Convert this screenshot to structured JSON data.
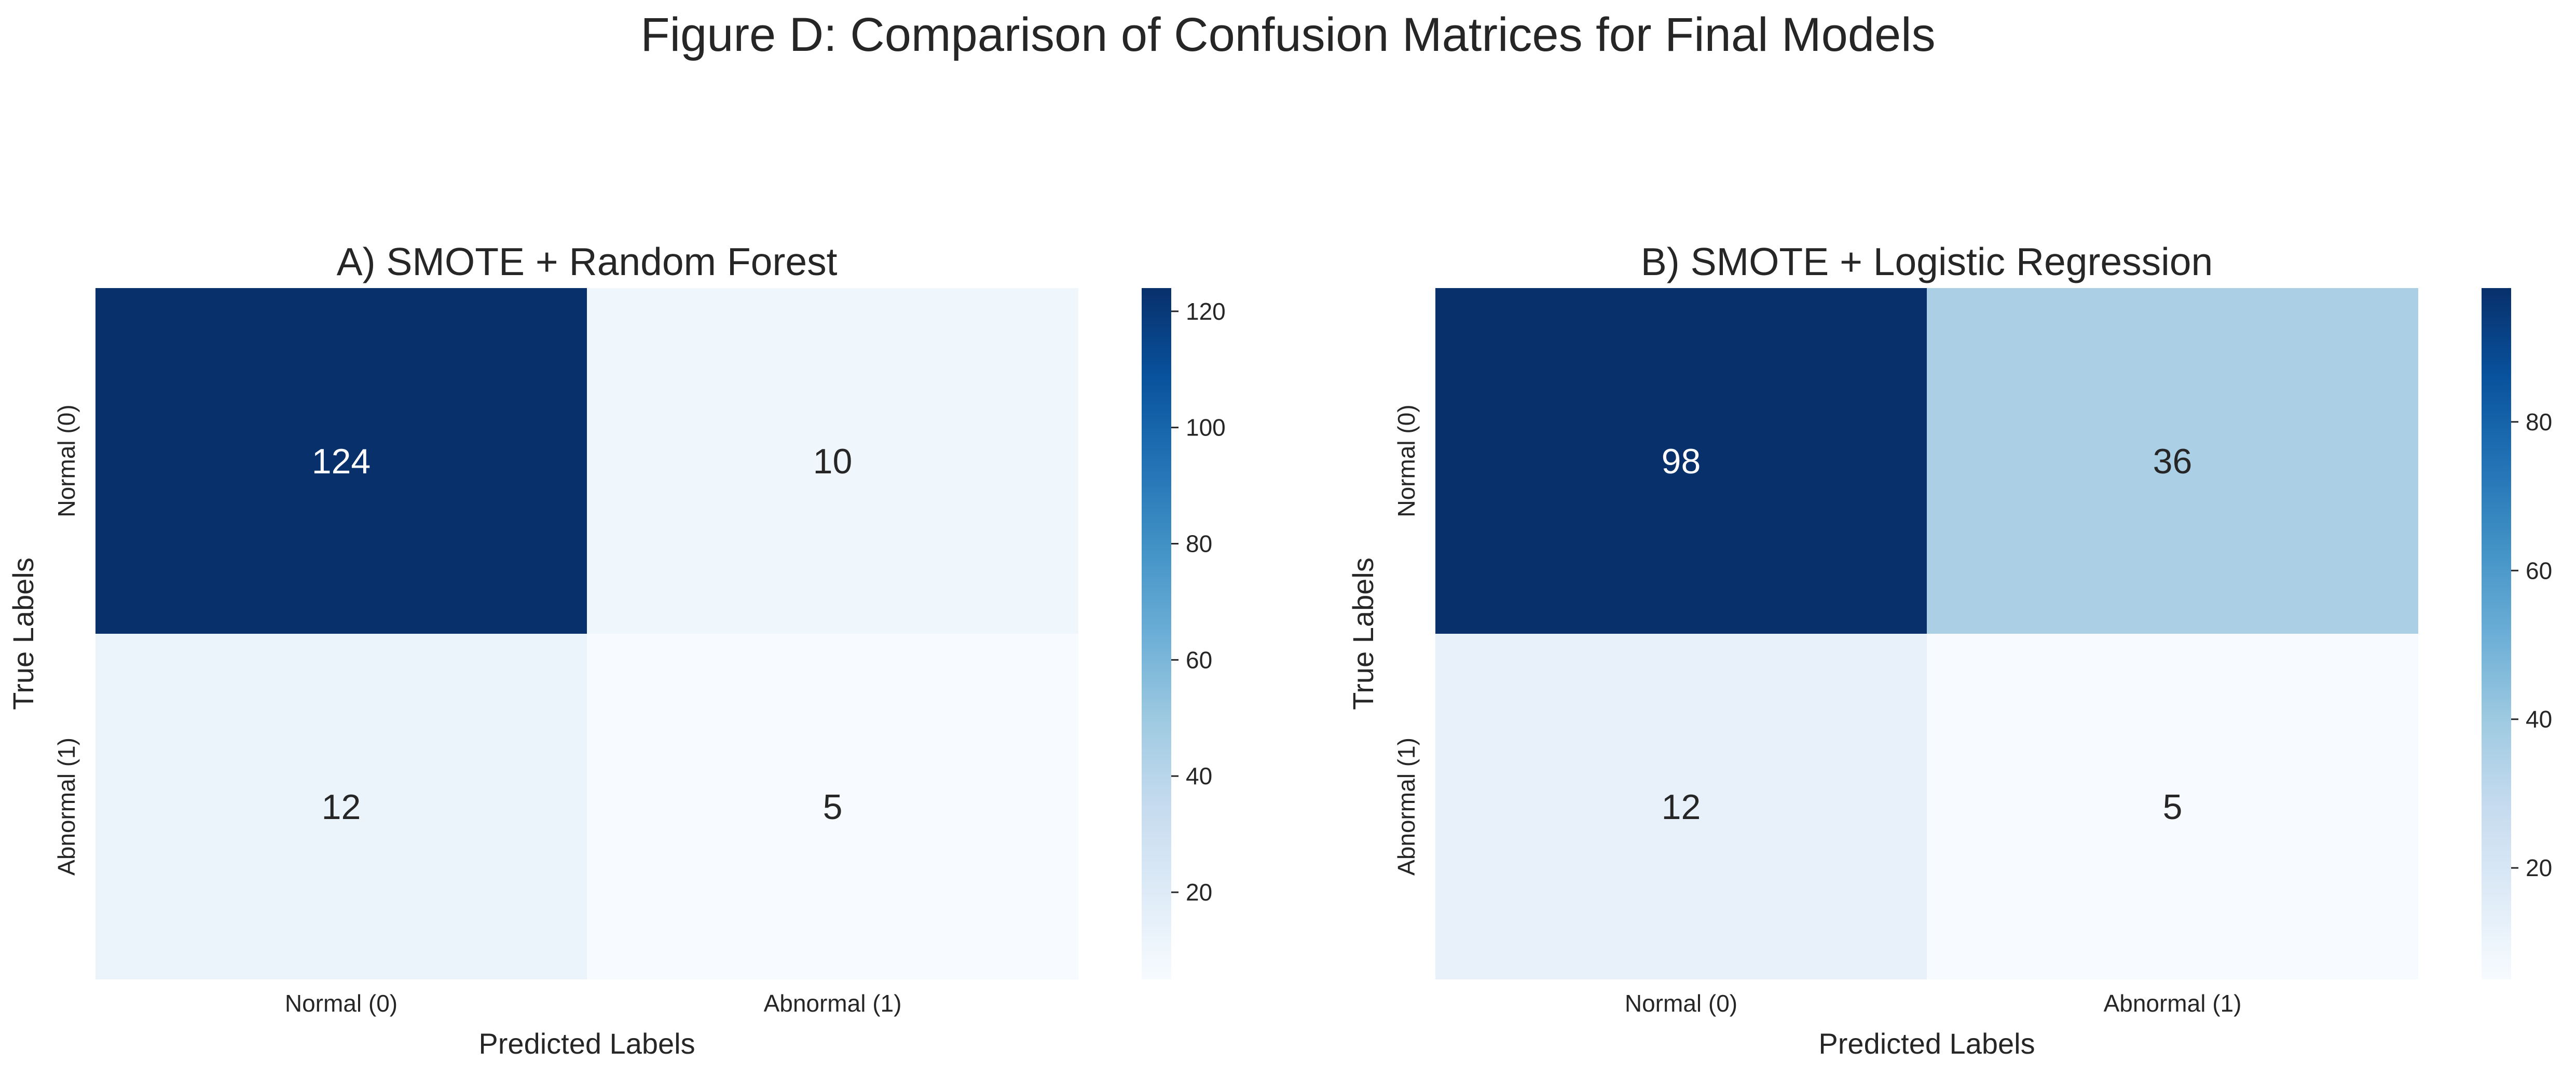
{
  "figure": {
    "title": "Figure D: Comparison of Confusion Matrices for Final Models"
  },
  "chart_data": [
    {
      "type": "heatmap",
      "title": "A) SMOTE + Random Forest",
      "xlabel": "Predicted Labels",
      "ylabel": "True Labels",
      "x_categories": [
        "Normal (0)",
        "Abnormal (1)"
      ],
      "y_categories": [
        "Normal (0)",
        "Abnormal (1)"
      ],
      "values": [
        [
          124,
          10
        ],
        [
          12,
          5
        ]
      ],
      "colormap": "Blues",
      "color_range": [
        5,
        124
      ],
      "colorbar": {
        "ticks": [
          20,
          40,
          60,
          80,
          100,
          120
        ]
      }
    },
    {
      "type": "heatmap",
      "title": "B) SMOTE + Logistic Regression",
      "xlabel": "Predicted Labels",
      "ylabel": "True Labels",
      "x_categories": [
        "Normal (0)",
        "Abnormal (1)"
      ],
      "y_categories": [
        "Normal (0)",
        "Abnormal (1)"
      ],
      "values": [
        [
          98,
          36
        ],
        [
          12,
          5
        ]
      ],
      "colormap": "Blues",
      "color_range": [
        5,
        98
      ],
      "colorbar": {
        "ticks": [
          20,
          40,
          60,
          80
        ]
      }
    }
  ],
  "colors": {
    "colormap_stops": [
      "#f7fbff",
      "#deebf7",
      "#c6dbef",
      "#9ecae1",
      "#6baed6",
      "#4292c6",
      "#2171b5",
      "#08519c",
      "#08306b"
    ],
    "annotation_light": "#ffffff",
    "annotation_dark": "#262626",
    "text": "#262626"
  }
}
